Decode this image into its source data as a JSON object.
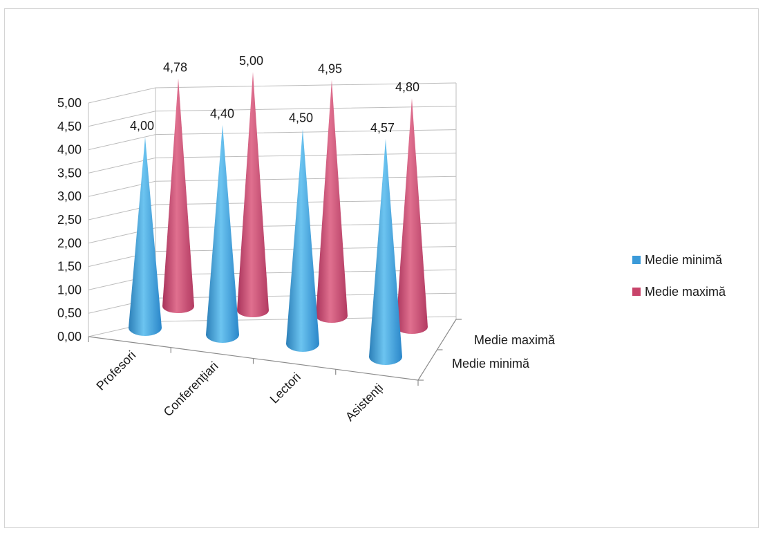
{
  "chart_data": {
    "type": "bar",
    "shape": "3d-cone",
    "categories": [
      "Profesori",
      "Conferențiari",
      "Lectori",
      "Asistenți"
    ],
    "series": [
      {
        "name": "Medie minimă",
        "values": [
          4.0,
          4.4,
          4.5,
          4.57
        ],
        "labels": [
          "4,00",
          "4,40",
          "4,50",
          "4,57"
        ],
        "color": "#3a9ad9"
      },
      {
        "name": "Medie maximă",
        "values": [
          4.78,
          5.0,
          4.95,
          4.8
        ],
        "labels": [
          "4,78",
          "5,00",
          "4,95",
          "4,80"
        ],
        "color": "#c8446a"
      }
    ],
    "ylim": [
      0,
      5
    ],
    "y_ticks": [
      "0,00",
      "0,50",
      "1,00",
      "1,50",
      "2,00",
      "2,50",
      "3,00",
      "3,50",
      "4,00",
      "4,50",
      "5,00"
    ],
    "depth_labels": [
      "Medie maximă",
      "Medie minimă"
    ],
    "legend": {
      "position": "right",
      "entries": [
        "Medie minimă",
        "Medie maximă"
      ]
    },
    "grid": true
  }
}
